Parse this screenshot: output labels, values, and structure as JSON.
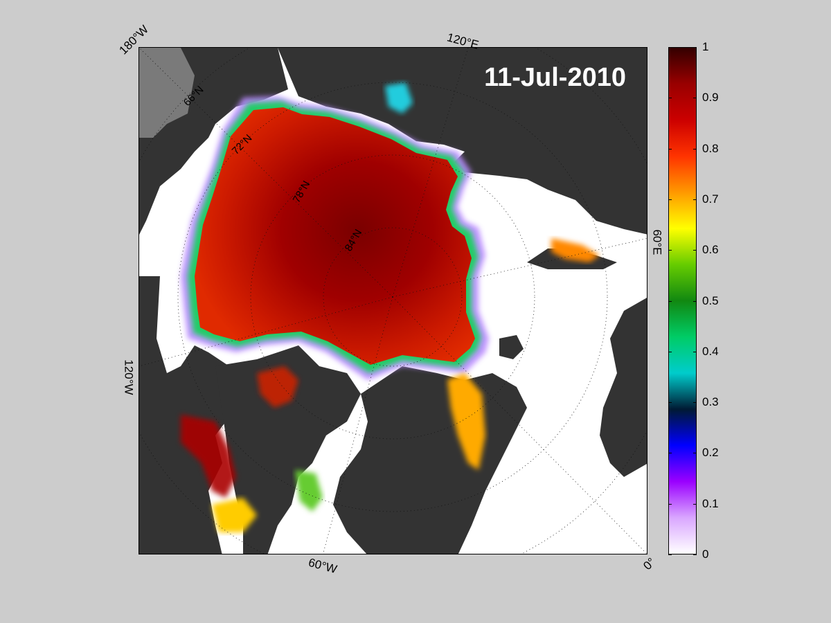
{
  "map": {
    "date_label": "11-Jul-2010",
    "longitude_labels": {
      "top_left": "180°W",
      "top": "120°E",
      "right": "60°E",
      "left": "120°W",
      "bottom": "60°W",
      "bottom_right": "0°"
    },
    "latitude_labels": [
      "66°N",
      "72°N",
      "78°N",
      "84°N"
    ],
    "colors": {
      "figure_background": "#cccccc",
      "land": "#333333",
      "land_no_data": "#7a7a7a",
      "open_water": "#ffffff"
    }
  },
  "colorbar": {
    "ticks": [
      "0",
      "0.1",
      "0.2",
      "0.3",
      "0.4",
      "0.5",
      "0.6",
      "0.7",
      "0.8",
      "0.9",
      "1"
    ],
    "range": [
      0,
      1
    ],
    "colormap": [
      "#ffffff",
      "#d9a6ff",
      "#9a00ff",
      "#0000ff",
      "#001a33",
      "#00cccc",
      "#00cc66",
      "#118811",
      "#66cc00",
      "#ffff00",
      "#ff9900",
      "#ff3300",
      "#cc0000",
      "#990000",
      "#330000"
    ]
  }
}
